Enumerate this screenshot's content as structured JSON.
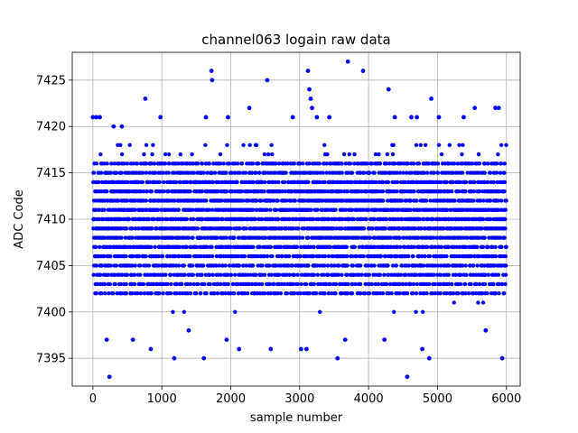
{
  "chart_data": {
    "type": "scatter",
    "title": "channel063 logain raw data",
    "xlabel": "sample number",
    "ylabel": "ADC Code",
    "xlim": [
      -300,
      6200
    ],
    "ylim": [
      7392,
      7428
    ],
    "xticks": [
      0,
      1000,
      2000,
      3000,
      4000,
      5000,
      6000
    ],
    "yticks": [
      7395,
      7400,
      7405,
      7410,
      7415,
      7420,
      7425
    ],
    "grid": true,
    "marker_color": "#0000ff",
    "n_samples": 6000,
    "dense_band": {
      "min": 7401,
      "max": 7417,
      "center": 7410
    },
    "outliers": [
      {
        "x": 0,
        "y": 7421
      },
      {
        "x": 50,
        "y": 7421
      },
      {
        "x": 100,
        "y": 7421
      },
      {
        "x": 200,
        "y": 7397
      },
      {
        "x": 240,
        "y": 7393
      },
      {
        "x": 300,
        "y": 7420
      },
      {
        "x": 420,
        "y": 7420
      },
      {
        "x": 580,
        "y": 7397
      },
      {
        "x": 760,
        "y": 7423
      },
      {
        "x": 840,
        "y": 7396
      },
      {
        "x": 980,
        "y": 7421
      },
      {
        "x": 1180,
        "y": 7395
      },
      {
        "x": 1390,
        "y": 7398
      },
      {
        "x": 1610,
        "y": 7395
      },
      {
        "x": 1640,
        "y": 7421
      },
      {
        "x": 1720,
        "y": 7426
      },
      {
        "x": 1730,
        "y": 7425
      },
      {
        "x": 1940,
        "y": 7397
      },
      {
        "x": 1960,
        "y": 7421
      },
      {
        "x": 2120,
        "y": 7396
      },
      {
        "x": 2270,
        "y": 7422
      },
      {
        "x": 2530,
        "y": 7425
      },
      {
        "x": 2580,
        "y": 7396
      },
      {
        "x": 2900,
        "y": 7421
      },
      {
        "x": 3020,
        "y": 7396
      },
      {
        "x": 3100,
        "y": 7396
      },
      {
        "x": 3120,
        "y": 7426
      },
      {
        "x": 3140,
        "y": 7424
      },
      {
        "x": 3160,
        "y": 7423
      },
      {
        "x": 3180,
        "y": 7422
      },
      {
        "x": 3250,
        "y": 7421
      },
      {
        "x": 3430,
        "y": 7421
      },
      {
        "x": 3550,
        "y": 7395
      },
      {
        "x": 3660,
        "y": 7397
      },
      {
        "x": 3700,
        "y": 7427
      },
      {
        "x": 3920,
        "y": 7426
      },
      {
        "x": 4230,
        "y": 7397
      },
      {
        "x": 4290,
        "y": 7424
      },
      {
        "x": 4380,
        "y": 7421
      },
      {
        "x": 4560,
        "y": 7393
      },
      {
        "x": 4620,
        "y": 7421
      },
      {
        "x": 4700,
        "y": 7421
      },
      {
        "x": 4780,
        "y": 7396
      },
      {
        "x": 4880,
        "y": 7395
      },
      {
        "x": 4910,
        "y": 7423
      },
      {
        "x": 5020,
        "y": 7421
      },
      {
        "x": 5380,
        "y": 7421
      },
      {
        "x": 5540,
        "y": 7422
      },
      {
        "x": 5700,
        "y": 7398
      },
      {
        "x": 5840,
        "y": 7422
      },
      {
        "x": 5890,
        "y": 7422
      },
      {
        "x": 5940,
        "y": 7395
      }
    ]
  }
}
